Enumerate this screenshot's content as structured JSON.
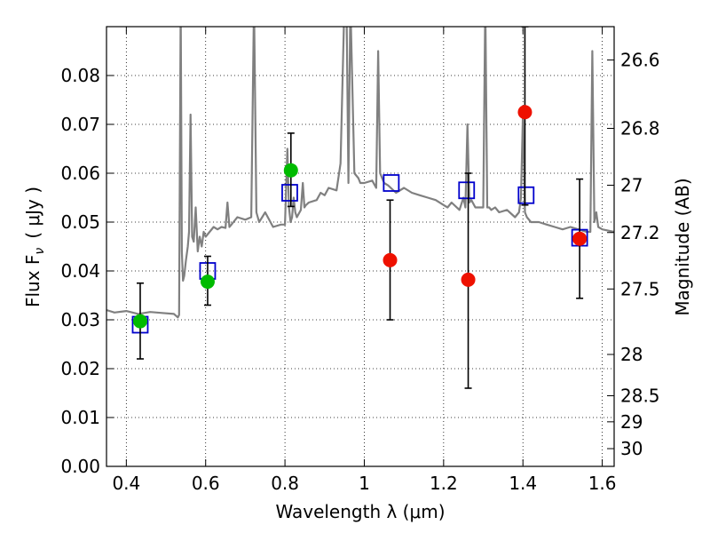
{
  "chart_data": {
    "type": "scatter",
    "title": "",
    "xlabel": "Wavelength  λ (μm)",
    "ylabel": "Flux  F",
    "ylabel_sub": "ν",
    "ylabel_unit": "( μJy )",
    "y2label": "Magnitude (AB)",
    "xlim": [
      0.35,
      1.63
    ],
    "ylim": [
      0.0,
      0.09
    ],
    "grid": true,
    "x_ticks": [
      0.4,
      0.6,
      0.8,
      1.0,
      1.2,
      1.4,
      1.6
    ],
    "x_tick_labels": [
      "0.4",
      "0.6",
      "0.8",
      "1",
      "1.2",
      "1.4",
      "1.6"
    ],
    "y_ticks": [
      0.0,
      0.01,
      0.02,
      0.03,
      0.04,
      0.05,
      0.06,
      0.07,
      0.08
    ],
    "y_tick_labels": [
      "0.00",
      "0.01",
      "0.02",
      "0.03",
      "0.04",
      "0.05",
      "0.06",
      "0.07",
      "0.08"
    ],
    "y2_ticks": [
      26.6,
      26.8,
      27.0,
      27.2,
      27.5,
      28.0,
      28.5,
      29.0,
      30.0
    ],
    "y2_tick_labels": [
      "26.6",
      "26.8",
      "27",
      "27.2",
      "27.5",
      "28",
      "28.5",
      "29",
      "30"
    ],
    "colors": {
      "spectrum": "#808080",
      "model_box": "#0000cc",
      "detected": "#00bb00",
      "nondetected": "#ee1100",
      "errorbar": "#000000"
    },
    "series": [
      {
        "kind": "line",
        "color": "#808080",
        "x": [
          0.35,
          0.37,
          0.4,
          0.43,
          0.46,
          0.49,
          0.52,
          0.53,
          0.533,
          0.537,
          0.54,
          0.543,
          0.546,
          0.55,
          0.555,
          0.558,
          0.562,
          0.566,
          0.57,
          0.575,
          0.58,
          0.585,
          0.59,
          0.595,
          0.6,
          0.61,
          0.62,
          0.63,
          0.64,
          0.65,
          0.655,
          0.66,
          0.665,
          0.67,
          0.68,
          0.7,
          0.715,
          0.722,
          0.728,
          0.735,
          0.75,
          0.77,
          0.79,
          0.8,
          0.806,
          0.81,
          0.814,
          0.818,
          0.822,
          0.826,
          0.83,
          0.84,
          0.845,
          0.849,
          0.853,
          0.86,
          0.88,
          0.89,
          0.9,
          0.91,
          0.93,
          0.94,
          0.95,
          0.955,
          0.96,
          0.965,
          0.975,
          0.985,
          0.99,
          1.0,
          1.02,
          1.03,
          1.035,
          1.04,
          1.05,
          1.06,
          1.08,
          1.1,
          1.12,
          1.14,
          1.16,
          1.18,
          1.2,
          1.21,
          1.22,
          1.24,
          1.25,
          1.255,
          1.26,
          1.265,
          1.27,
          1.28,
          1.3,
          1.305,
          1.31,
          1.315,
          1.32,
          1.33,
          1.34,
          1.36,
          1.38,
          1.39,
          1.395,
          1.4,
          1.405,
          1.41,
          1.42,
          1.44,
          1.46,
          1.48,
          1.5,
          1.52,
          1.54,
          1.56,
          1.57,
          1.575,
          1.58,
          1.585,
          1.59,
          1.6,
          1.63
        ],
        "y": [
          0.032,
          0.0315,
          0.0318,
          0.0312,
          0.0316,
          0.0314,
          0.0312,
          0.0305,
          0.031,
          0.095,
          0.044,
          0.038,
          0.039,
          0.042,
          0.045,
          0.048,
          0.072,
          0.047,
          0.046,
          0.053,
          0.044,
          0.047,
          0.045,
          0.048,
          0.047,
          0.048,
          0.049,
          0.0485,
          0.049,
          0.0488,
          0.054,
          0.049,
          0.0495,
          0.05,
          0.051,
          0.0505,
          0.051,
          0.095,
          0.052,
          0.05,
          0.052,
          0.049,
          0.0495,
          0.0495,
          0.065,
          0.053,
          0.05,
          0.051,
          0.055,
          0.052,
          0.051,
          0.0525,
          0.058,
          0.053,
          0.0535,
          0.054,
          0.0545,
          0.056,
          0.0555,
          0.057,
          0.0565,
          0.062,
          0.095,
          0.095,
          0.058,
          0.095,
          0.06,
          0.059,
          0.058,
          0.058,
          0.0585,
          0.057,
          0.085,
          0.06,
          0.058,
          0.0575,
          0.056,
          0.057,
          0.056,
          0.0555,
          0.055,
          0.0545,
          0.0535,
          0.053,
          0.054,
          0.0525,
          0.055,
          0.053,
          0.07,
          0.054,
          0.0545,
          0.053,
          0.053,
          0.095,
          0.053,
          0.053,
          0.0525,
          0.053,
          0.052,
          0.0525,
          0.051,
          0.052,
          0.055,
          0.072,
          0.052,
          0.051,
          0.05,
          0.05,
          0.0495,
          0.049,
          0.0485,
          0.049,
          0.0485,
          0.048,
          0.048,
          0.085,
          0.05,
          0.052,
          0.049,
          0.0485,
          0.048
        ]
      },
      {
        "kind": "open-square",
        "color": "#0000cc",
        "x": [
          0.435,
          0.605,
          0.812,
          1.068,
          1.258,
          1.408,
          1.543
        ],
        "y": [
          0.029,
          0.04,
          0.056,
          0.058,
          0.0565,
          0.0555,
          0.0468
        ]
      },
      {
        "kind": "filled-circle",
        "color": "#00bb00",
        "x": [
          0.435,
          0.605,
          0.815
        ],
        "y": [
          0.0297,
          0.0378,
          0.0606
        ],
        "err_low": [
          0.0077,
          0.0048,
          0.0074
        ],
        "err_high": [
          0.0078,
          0.0052,
          0.0076
        ]
      },
      {
        "kind": "filled-circle",
        "color": "#ee1100",
        "x": [
          1.065,
          1.262,
          1.405,
          1.543
        ],
        "y": [
          0.0422,
          0.0382,
          0.0725,
          0.0466
        ],
        "err_low": [
          0.0122,
          0.0222,
          0.019,
          0.0122
        ],
        "err_high": [
          0.0123,
          0.0218,
          0.0175,
          0.0122
        ]
      }
    ]
  }
}
